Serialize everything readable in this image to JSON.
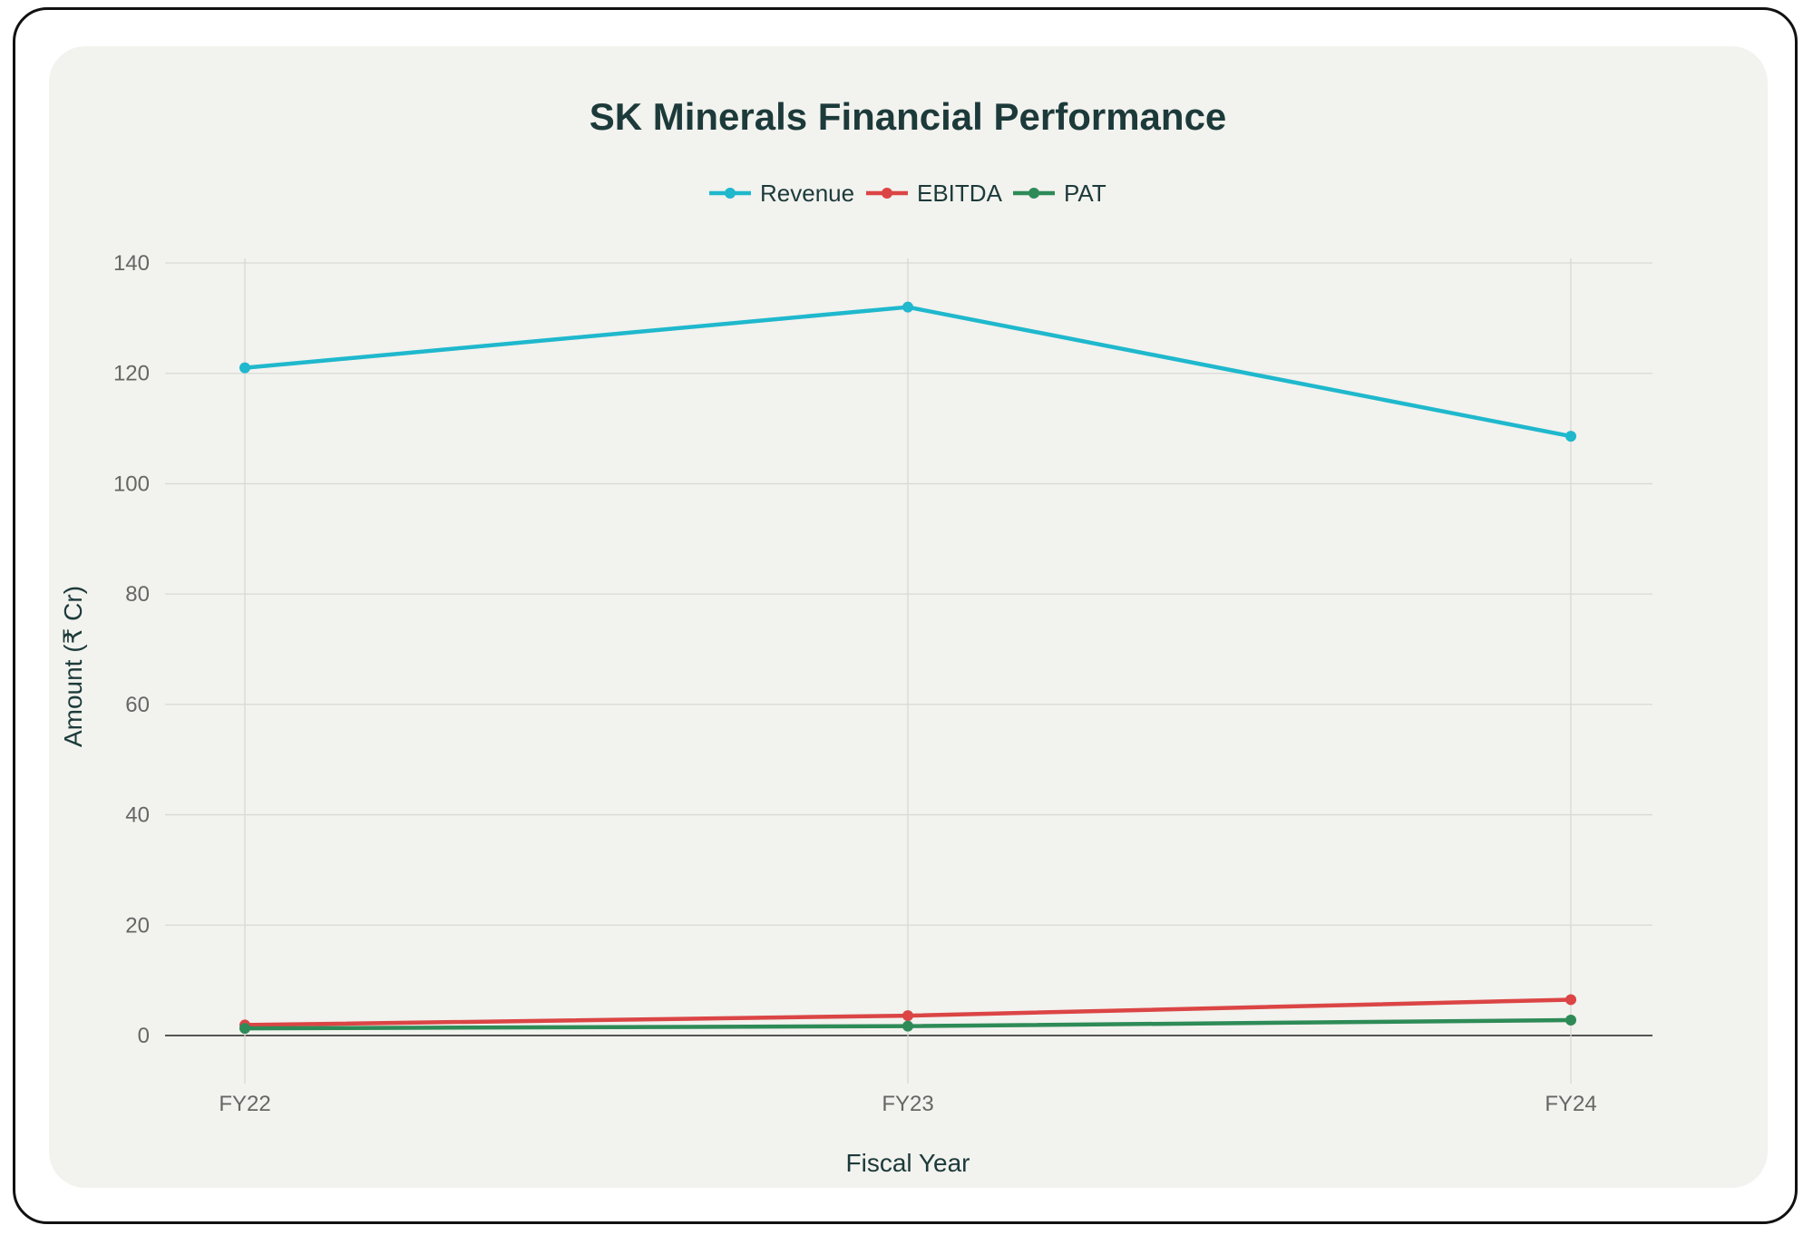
{
  "chart_data": {
    "type": "line",
    "title": "SK Minerals Financial Performance",
    "xlabel": "Fiscal Year",
    "ylabel": "Amount (₹ Cr)",
    "categories": [
      "FY22",
      "FY23",
      "FY24"
    ],
    "ylim": [
      0,
      140
    ],
    "yticks": [
      0,
      20,
      40,
      60,
      80,
      100,
      120,
      140
    ],
    "grid": true,
    "legend_position": "top-center",
    "series": [
      {
        "name": "Revenue",
        "color": "#1fb8cd",
        "values": [
          121,
          132,
          108.6
        ]
      },
      {
        "name": "EBITDA",
        "color": "#db4545",
        "values": [
          1.9,
          3.6,
          6.5
        ]
      },
      {
        "name": "PAT",
        "color": "#2e8b57",
        "values": [
          1.3,
          1.7,
          2.8
        ]
      }
    ]
  }
}
